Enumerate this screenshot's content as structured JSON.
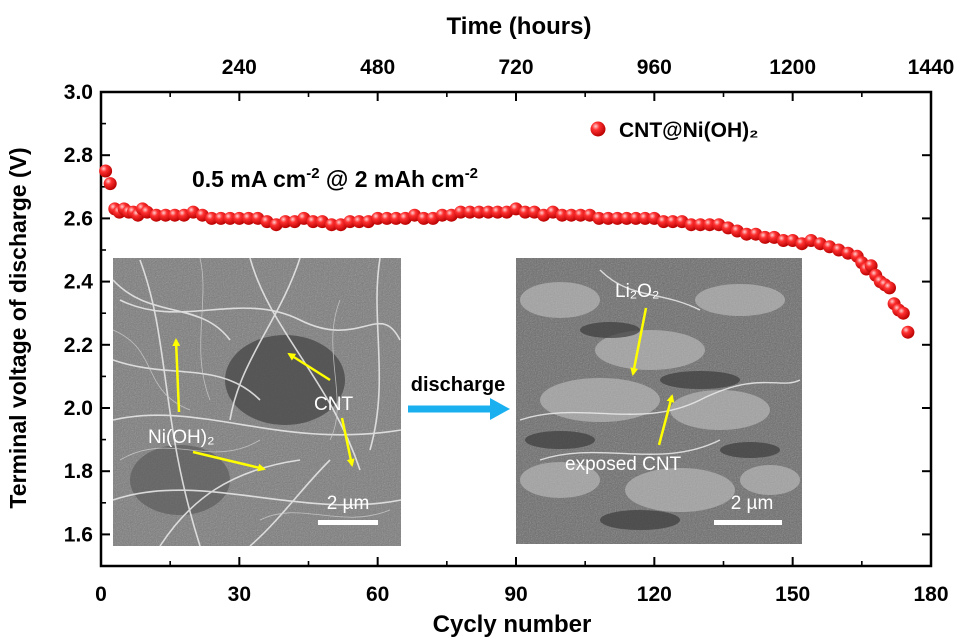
{
  "chart_data": {
    "type": "scatter",
    "title": "",
    "xlabel": "Cycly number",
    "ylabel": "Terminal voltage of discharge (V)",
    "x2label": "Time (hours)",
    "xlim": [
      0,
      180
    ],
    "ylim": [
      1.5,
      3.0
    ],
    "x2lim": [
      0,
      1440
    ],
    "xticks": [
      "0",
      "30",
      "60",
      "90",
      "120",
      "150",
      "180"
    ],
    "yticks": [
      "1.6",
      "1.8",
      "2.0",
      "2.2",
      "2.4",
      "2.6",
      "2.8",
      "3.0"
    ],
    "x2ticks": [
      "240",
      "480",
      "720",
      "960",
      "1200",
      "1440"
    ],
    "legend": {
      "label": "CNT@Ni(OH)₂",
      "position": "top-right",
      "color": "#ff2020"
    },
    "annotation": {
      "prefix": "0.5 mA cm",
      "exp1": "-2",
      "middle": " @ 2 mAh cm",
      "exp2": "-2"
    },
    "series": [
      {
        "name": "CNT@Ni(OH)₂",
        "color": "#ff2020",
        "x": [
          1,
          2,
          3,
          4,
          5,
          6,
          7,
          8,
          9,
          10,
          12,
          14,
          16,
          18,
          20,
          22,
          24,
          26,
          28,
          30,
          32,
          34,
          36,
          38,
          40,
          42,
          44,
          46,
          48,
          50,
          52,
          54,
          56,
          58,
          60,
          62,
          64,
          66,
          68,
          70,
          72,
          74,
          76,
          78,
          80,
          82,
          84,
          86,
          88,
          90,
          92,
          94,
          96,
          98,
          100,
          102,
          104,
          106,
          108,
          110,
          112,
          114,
          116,
          118,
          120,
          122,
          124,
          126,
          128,
          130,
          132,
          134,
          136,
          138,
          140,
          142,
          144,
          146,
          148,
          150,
          152,
          154,
          156,
          158,
          160,
          162,
          164,
          165,
          166,
          167,
          168,
          169,
          170,
          171,
          172,
          173,
          174,
          175
        ],
        "y": [
          2.75,
          2.71,
          2.63,
          2.62,
          2.63,
          2.62,
          2.62,
          2.61,
          2.63,
          2.62,
          2.61,
          2.61,
          2.61,
          2.61,
          2.62,
          2.61,
          2.6,
          2.6,
          2.6,
          2.6,
          2.6,
          2.6,
          2.59,
          2.58,
          2.59,
          2.59,
          2.6,
          2.59,
          2.59,
          2.58,
          2.58,
          2.59,
          2.59,
          2.59,
          2.6,
          2.6,
          2.6,
          2.6,
          2.61,
          2.6,
          2.6,
          2.61,
          2.61,
          2.62,
          2.62,
          2.62,
          2.62,
          2.62,
          2.62,
          2.63,
          2.62,
          2.62,
          2.61,
          2.62,
          2.61,
          2.61,
          2.61,
          2.61,
          2.6,
          2.6,
          2.6,
          2.6,
          2.6,
          2.6,
          2.6,
          2.59,
          2.59,
          2.59,
          2.58,
          2.58,
          2.58,
          2.58,
          2.57,
          2.56,
          2.55,
          2.55,
          2.54,
          2.54,
          2.53,
          2.53,
          2.52,
          2.53,
          2.52,
          2.51,
          2.5,
          2.49,
          2.48,
          2.46,
          2.44,
          2.45,
          2.42,
          2.4,
          2.39,
          2.38,
          2.33,
          2.31,
          2.3,
          2.24
        ]
      }
    ]
  },
  "insets": [
    {
      "kind": "sem-cnt",
      "labels": [
        "Ni(OH)₂",
        "CNT"
      ],
      "scalebar": "2 µm"
    },
    {
      "kind": "sem-li2o2",
      "labels": [
        "Li₂O₂",
        "exposed CNT"
      ],
      "scalebar": "2 µm"
    }
  ],
  "arrow_label": "discharge",
  "colors": {
    "marker": "#ff2020",
    "arrow_pointer": "#ffff00",
    "discharge_arrow": "#1ab0f0",
    "sem_bg": "#6e6e6e"
  }
}
